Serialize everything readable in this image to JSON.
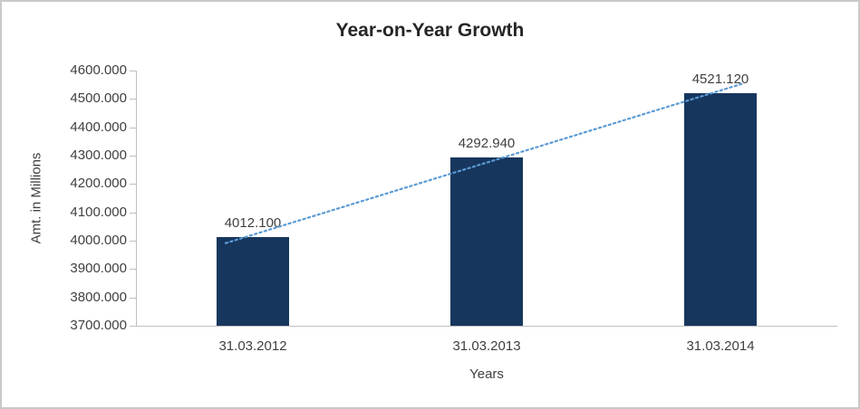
{
  "chart_data": {
    "type": "bar",
    "title": "Year-on-Year Growth",
    "categories": [
      "31.03.2012",
      "31.03.2013",
      "31.03.2014"
    ],
    "values": [
      4012.1,
      4292.94,
      4521.12
    ],
    "data_labels": [
      "4012.100",
      "4292.940",
      "4521.120"
    ],
    "xlabel": "Years",
    "ylabel": "Amt. in Millions",
    "ylim": [
      3700,
      4600
    ],
    "ytick_step": 100,
    "ytick_labels": [
      "3700.000",
      "3800.000",
      "3900.000",
      "4000.000",
      "4100.000",
      "4200.000",
      "4300.000",
      "4400.000",
      "4500.000",
      "4600.000"
    ],
    "grid": false,
    "legend": "none",
    "trendline": {
      "type": "linear",
      "style": "dotted"
    },
    "colors": {
      "bar": "#17365d",
      "trendline": "#5b9bd5",
      "axis": "#bfbfbf",
      "text": "#404040",
      "title": "#262626"
    }
  }
}
